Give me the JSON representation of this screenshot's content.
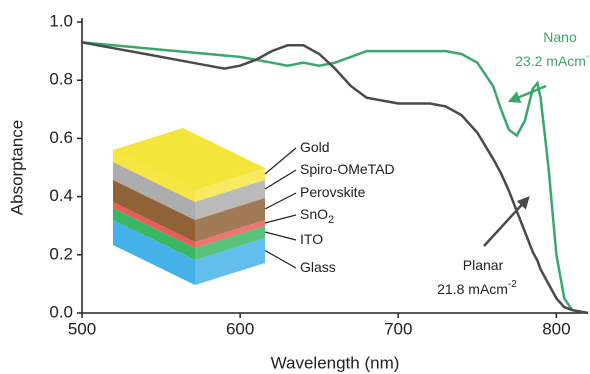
{
  "chart_data": {
    "type": "line",
    "x_label": "Wavelength (nm)",
    "y_label": "Absorptance",
    "x": [
      500,
      520,
      540,
      560,
      580,
      590,
      600,
      610,
      620,
      630,
      640,
      650,
      660,
      670,
      680,
      690,
      700,
      720,
      730,
      740,
      750,
      760,
      765,
      770,
      775,
      780,
      785,
      788,
      790,
      795,
      800,
      805,
      810,
      820
    ],
    "series": [
      {
        "name": "Nano",
        "color": "#3aa86b",
        "values": [
          0.93,
          0.92,
          0.91,
          0.9,
          0.89,
          0.885,
          0.88,
          0.87,
          0.86,
          0.85,
          0.86,
          0.85,
          0.86,
          0.88,
          0.9,
          0.9,
          0.9,
          0.9,
          0.9,
          0.89,
          0.86,
          0.78,
          0.7,
          0.63,
          0.61,
          0.66,
          0.77,
          0.79,
          0.74,
          0.5,
          0.2,
          0.05,
          0.01,
          0.0
        ]
      },
      {
        "name": "Planar",
        "color": "#4a4a4a",
        "values": [
          0.93,
          0.91,
          0.89,
          0.87,
          0.85,
          0.84,
          0.85,
          0.87,
          0.9,
          0.92,
          0.92,
          0.89,
          0.84,
          0.78,
          0.74,
          0.73,
          0.72,
          0.72,
          0.71,
          0.68,
          0.62,
          0.53,
          0.48,
          0.42,
          0.35,
          0.28,
          0.21,
          0.18,
          0.15,
          0.1,
          0.05,
          0.02,
          0.01,
          0.0
        ]
      }
    ],
    "annotations": [
      {
        "name": "Nano",
        "text": "23.2 mAcm",
        "sup": "-2"
      },
      {
        "name": "Planar",
        "text": "21.8 mAcm",
        "sup": "-2"
      }
    ],
    "xlim": [
      500,
      820
    ],
    "ylim": [
      0,
      1
    ],
    "xticks": [
      500,
      600,
      700,
      800
    ],
    "yticks": [
      {
        "value": 0,
        "label": "0.0"
      },
      0.2,
      0.4,
      0.6,
      0.8,
      {
        "value": 1,
        "label": "1.0"
      }
    ]
  },
  "inset": {
    "layers": [
      {
        "label": "Gold",
        "color": "#f4e53a"
      },
      {
        "label": "Spiro-OMeTAD",
        "color": "#a9a9a9"
      },
      {
        "label": "Perovskite",
        "color": "#8a5a2b"
      },
      {
        "label": "SnO",
        "sub": "2",
        "color": "#e8534f"
      },
      {
        "label": "ITO",
        "color": "#2fb35a"
      },
      {
        "label": "Glass",
        "color": "#3aaee8"
      }
    ]
  }
}
